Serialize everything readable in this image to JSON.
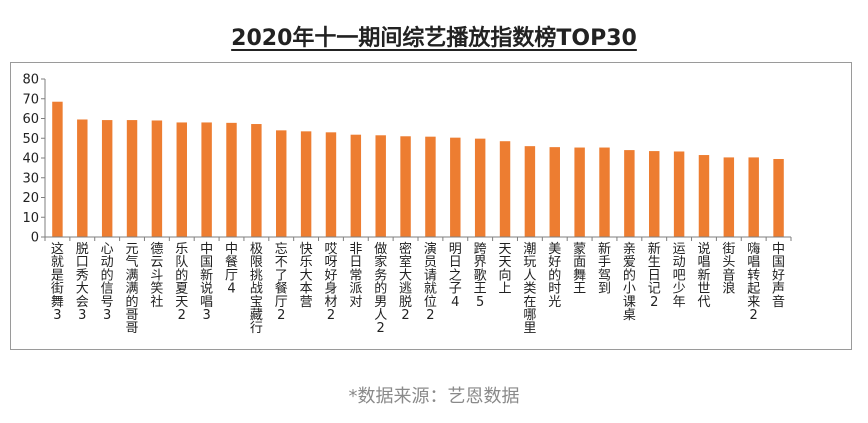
{
  "header": {
    "title": "2020年十一期间综艺播放指数榜TOP30"
  },
  "footer": {
    "source": "*数据来源：艺恩数据"
  },
  "colors": {
    "bar": "#ED7D31",
    "axis": "#7f7f7f",
    "text": "#222222"
  },
  "chart_data": {
    "type": "bar",
    "title": "2020年十一期间综艺播放指数榜TOP30",
    "xlabel": "",
    "ylabel": "",
    "ylim": [
      0,
      80
    ],
    "yticks": [
      0,
      10,
      20,
      30,
      40,
      50,
      60,
      70,
      80
    ],
    "grid": false,
    "legend": "none",
    "categories": [
      "这就是街舞3",
      "脱口秀大会3",
      "心动的信号3",
      "元气满满的哥哥",
      "德云斗笑社",
      "乐队的夏天2",
      "中国新说唱3",
      "中餐厅4",
      "极限挑战宝藏行",
      "忘不了餐厅2",
      "快乐大本营",
      "哎呀好身材2",
      "非日常派对",
      "做家务的男人2",
      "密室大逃脱2",
      "演员请就位2",
      "明日之子4",
      "跨界歌王5",
      "天天向上",
      "潮玩人类在哪里",
      "美好的时光",
      "蒙面舞王",
      "新手驾到",
      "亲爱的小课桌",
      "新生日记2",
      "运动吧少年",
      "说唱新世代",
      "街头音浪",
      "嗨唱转起来2",
      "中国好声音"
    ],
    "values": [
      68.5,
      59.5,
      59.2,
      59.2,
      59.0,
      58.0,
      58.0,
      57.8,
      57.2,
      54.0,
      53.5,
      53.0,
      51.8,
      51.5,
      51.0,
      50.8,
      50.3,
      49.8,
      48.5,
      46.0,
      45.5,
      45.3,
      45.3,
      44.0,
      43.5,
      43.3,
      41.5,
      40.3,
      40.3,
      39.5
    ]
  }
}
